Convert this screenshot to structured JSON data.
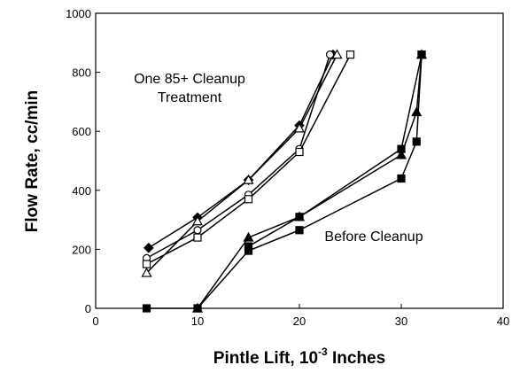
{
  "chart_data": {
    "type": "line",
    "xlabel": "Pintle Lift, 10",
    "xlabel_superscript": "-3",
    "xlabel_suffix": " Inches",
    "ylabel": "Flow Rate, cc/min",
    "annotations": [
      "One 85+ Cleanup",
      "Treatment",
      "Before Cleanup"
    ],
    "xlim": [
      0,
      40
    ],
    "xticks": [
      0,
      10,
      20,
      30,
      40
    ],
    "ylim": [
      0,
      1000
    ],
    "yticks": [
      0,
      200,
      400,
      600,
      800,
      1000
    ],
    "series": [
      {
        "marker": "diamond",
        "filled": true,
        "color": "#000000",
        "x": [
          5.2,
          10,
          15,
          20,
          23.3
        ],
        "values": [
          205,
          308,
          435,
          620,
          860
        ]
      },
      {
        "marker": "triangle",
        "filled": false,
        "color": "#000000",
        "x": [
          5,
          10,
          15,
          20,
          23.7
        ],
        "values": [
          120,
          295,
          435,
          610,
          860
        ]
      },
      {
        "marker": "circle",
        "filled": false,
        "color": "#000000",
        "x": [
          5,
          10,
          15,
          20,
          23
        ],
        "values": [
          170,
          265,
          385,
          540,
          860
        ]
      },
      {
        "marker": "square",
        "filled": false,
        "color": "#000000",
        "x": [
          5,
          10,
          15,
          20,
          25
        ],
        "values": [
          150,
          240,
          370,
          530,
          860
        ]
      },
      {
        "marker": "square",
        "filled": true,
        "color": "#000000",
        "x": [
          5,
          10,
          15,
          20,
          30,
          31.5,
          32
        ],
        "values": [
          0,
          0,
          195,
          265,
          440,
          565,
          860
        ]
      },
      {
        "marker": "triangle",
        "filled": true,
        "color": "#000000",
        "x": [
          10,
          15,
          20,
          30,
          31.5,
          32
        ],
        "values": [
          0,
          240,
          310,
          520,
          665,
          860
        ]
      },
      {
        "marker": "square",
        "filled": true,
        "color": "#000000",
        "x": [
          15,
          20,
          30,
          32
        ],
        "values": [
          210,
          310,
          540,
          860
        ]
      }
    ]
  }
}
